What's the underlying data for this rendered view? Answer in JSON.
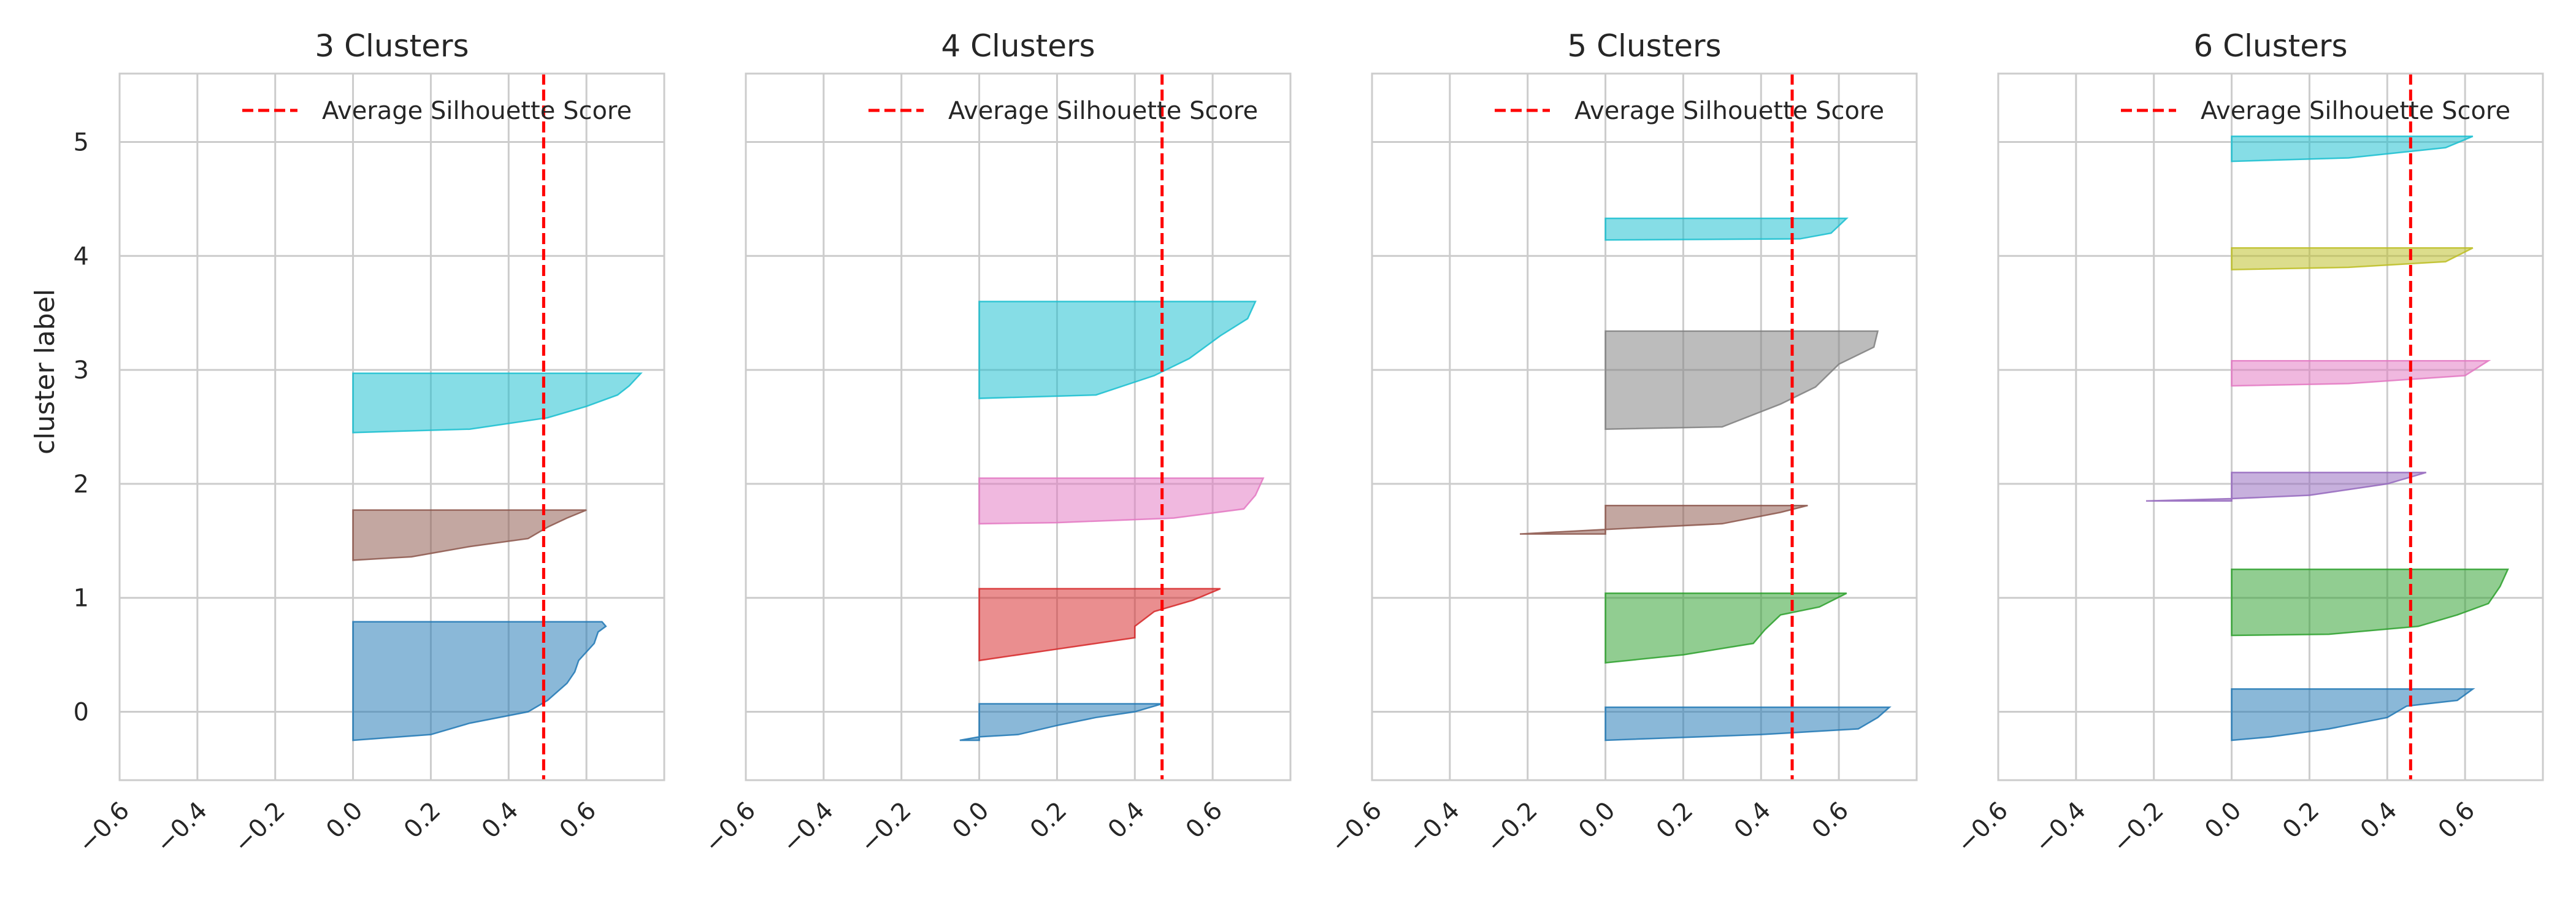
{
  "chart_data": [
    {
      "type": "area",
      "title": "3 Clusters",
      "xlabel": "",
      "ylabel": "cluster label",
      "xlim": [
        -0.6,
        0.8
      ],
      "ylim": [
        -0.6,
        5.6
      ],
      "xticks": [
        "−0.6",
        "−0.4",
        "−0.2",
        "0.0",
        "0.2",
        "0.4",
        "0.6"
      ],
      "yticks": [
        "0",
        "1",
        "2",
        "3",
        "4",
        "5"
      ],
      "grid": true,
      "legend": {
        "label": "Average Silhouette Score",
        "placement": "top-right"
      },
      "average_score": 0.49,
      "clusters": [
        {
          "label": 0,
          "color": "#1f77b4",
          "y_range": [
            -0.25,
            0.79
          ],
          "profile": [
            [
              0.64,
              0.79
            ],
            [
              0.65,
              0.75
            ],
            [
              0.63,
              0.7
            ],
            [
              0.62,
              0.6
            ],
            [
              0.58,
              0.45
            ],
            [
              0.57,
              0.35
            ],
            [
              0.55,
              0.25
            ],
            [
              0.5,
              0.1
            ],
            [
              0.45,
              0.0
            ],
            [
              0.3,
              -0.1
            ],
            [
              0.2,
              -0.2
            ],
            [
              0.0,
              -0.25
            ]
          ]
        },
        {
          "label": 1,
          "color": "#8c564b",
          "y_range": [
            1.33,
            1.77
          ],
          "profile": [
            [
              0.6,
              1.77
            ],
            [
              0.55,
              1.7
            ],
            [
              0.5,
              1.62
            ],
            [
              0.45,
              1.52
            ],
            [
              0.3,
              1.45
            ],
            [
              0.15,
              1.36
            ],
            [
              0.0,
              1.33
            ]
          ]
        },
        {
          "label": 2,
          "color": "#17becf",
          "y_range": [
            2.45,
            2.97
          ],
          "profile": [
            [
              0.74,
              2.97
            ],
            [
              0.71,
              2.86
            ],
            [
              0.68,
              2.78
            ],
            [
              0.6,
              2.68
            ],
            [
              0.5,
              2.58
            ],
            [
              0.3,
              2.48
            ],
            [
              0.0,
              2.45
            ]
          ]
        }
      ]
    },
    {
      "type": "area",
      "title": "4 Clusters",
      "xlabel": "",
      "ylabel": "",
      "xlim": [
        -0.6,
        0.8
      ],
      "ylim": [
        -0.6,
        5.6
      ],
      "xticks": [
        "−0.6",
        "−0.4",
        "−0.2",
        "0.0",
        "0.2",
        "0.4",
        "0.6"
      ],
      "yticks": [
        "0",
        "1",
        "2",
        "3",
        "4",
        "5"
      ],
      "grid": true,
      "legend": {
        "label": "Average Silhouette Score",
        "placement": "top-right"
      },
      "average_score": 0.47,
      "clusters": [
        {
          "label": 0,
          "color": "#1f77b4",
          "y_range": [
            -0.25,
            0.07
          ],
          "profile": [
            [
              0.47,
              0.07
            ],
            [
              0.4,
              0.0
            ],
            [
              0.3,
              -0.05
            ],
            [
              0.2,
              -0.12
            ],
            [
              0.1,
              -0.2
            ],
            [
              0.0,
              -0.22
            ],
            [
              -0.05,
              -0.25
            ]
          ]
        },
        {
          "label": 1,
          "color": "#d62728",
          "y_range": [
            0.45,
            1.08
          ],
          "profile": [
            [
              0.62,
              1.08
            ],
            [
              0.55,
              0.98
            ],
            [
              0.45,
              0.88
            ],
            [
              0.4,
              0.75
            ],
            [
              0.4,
              0.65
            ],
            [
              0.2,
              0.55
            ],
            [
              0.0,
              0.45
            ]
          ]
        },
        {
          "label": 2,
          "color": "#e377c2",
          "y_range": [
            1.65,
            2.05
          ],
          "profile": [
            [
              0.73,
              2.05
            ],
            [
              0.71,
              1.9
            ],
            [
              0.68,
              1.78
            ],
            [
              0.5,
              1.7
            ],
            [
              0.2,
              1.66
            ],
            [
              0.0,
              1.65
            ]
          ]
        },
        {
          "label": 3,
          "color": "#17becf",
          "y_range": [
            2.75,
            3.6
          ],
          "profile": [
            [
              0.71,
              3.6
            ],
            [
              0.69,
              3.45
            ],
            [
              0.62,
              3.3
            ],
            [
              0.54,
              3.1
            ],
            [
              0.45,
              2.95
            ],
            [
              0.3,
              2.78
            ],
            [
              0.0,
              2.75
            ]
          ]
        }
      ]
    },
    {
      "type": "area",
      "title": "5 Clusters",
      "xlabel": "",
      "ylabel": "",
      "xlim": [
        -0.6,
        0.8
      ],
      "ylim": [
        -0.6,
        5.6
      ],
      "xticks": [
        "−0.6",
        "−0.4",
        "−0.2",
        "0.0",
        "0.2",
        "0.4",
        "0.6"
      ],
      "yticks": [
        "0",
        "1",
        "2",
        "3",
        "4",
        "5"
      ],
      "grid": true,
      "legend": {
        "label": "Average Silhouette Score",
        "placement": "top-right"
      },
      "average_score": 0.48,
      "clusters": [
        {
          "label": 0,
          "color": "#1f77b4",
          "y_range": [
            -0.25,
            0.04
          ],
          "profile": [
            [
              0.73,
              0.04
            ],
            [
              0.7,
              -0.05
            ],
            [
              0.65,
              -0.15
            ],
            [
              0.4,
              -0.2
            ],
            [
              0.0,
              -0.25
            ]
          ]
        },
        {
          "label": 1,
          "color": "#2ca02c",
          "y_range": [
            0.43,
            1.04
          ],
          "profile": [
            [
              0.62,
              1.04
            ],
            [
              0.55,
              0.92
            ],
            [
              0.45,
              0.85
            ],
            [
              0.41,
              0.72
            ],
            [
              0.38,
              0.6
            ],
            [
              0.2,
              0.5
            ],
            [
              0.0,
              0.43
            ]
          ]
        },
        {
          "label": 2,
          "color": "#8c564b",
          "y_range": [
            1.56,
            1.81
          ],
          "profile": [
            [
              0.52,
              1.81
            ],
            [
              0.45,
              1.75
            ],
            [
              0.3,
              1.65
            ],
            [
              0.0,
              1.6
            ],
            [
              -0.22,
              1.56
            ]
          ]
        },
        {
          "label": 3,
          "color": "#7f7f7f",
          "y_range": [
            2.48,
            3.34
          ],
          "profile": [
            [
              0.7,
              3.34
            ],
            [
              0.69,
              3.2
            ],
            [
              0.6,
              3.05
            ],
            [
              0.54,
              2.85
            ],
            [
              0.45,
              2.7
            ],
            [
              0.3,
              2.5
            ],
            [
              0.0,
              2.48
            ]
          ]
        },
        {
          "label": 4,
          "color": "#17becf",
          "y_range": [
            4.14,
            4.33
          ],
          "profile": [
            [
              0.62,
              4.33
            ],
            [
              0.58,
              4.2
            ],
            [
              0.5,
              4.15
            ],
            [
              0.0,
              4.14
            ]
          ]
        }
      ]
    },
    {
      "type": "area",
      "title": "6 Clusters",
      "xlabel": "",
      "ylabel": "",
      "xlim": [
        -0.6,
        0.8
      ],
      "ylim": [
        -0.6,
        5.6
      ],
      "xticks": [
        "−0.6",
        "−0.4",
        "−0.2",
        "0.0",
        "0.2",
        "0.4",
        "0.6"
      ],
      "yticks": [
        "0",
        "1",
        "2",
        "3",
        "4",
        "5"
      ],
      "grid": true,
      "legend": {
        "label": "Average Silhouette Score",
        "placement": "top-right"
      },
      "average_score": 0.46,
      "clusters": [
        {
          "label": 0,
          "color": "#1f77b4",
          "y_range": [
            -0.25,
            0.2
          ],
          "profile": [
            [
              0.62,
              0.2
            ],
            [
              0.58,
              0.1
            ],
            [
              0.45,
              0.05
            ],
            [
              0.4,
              -0.05
            ],
            [
              0.25,
              -0.15
            ],
            [
              0.1,
              -0.22
            ],
            [
              0.0,
              -0.25
            ]
          ]
        },
        {
          "label": 1,
          "color": "#2ca02c",
          "y_range": [
            0.67,
            1.25
          ],
          "profile": [
            [
              0.71,
              1.25
            ],
            [
              0.69,
              1.1
            ],
            [
              0.66,
              0.95
            ],
            [
              0.58,
              0.85
            ],
            [
              0.48,
              0.75
            ],
            [
              0.25,
              0.68
            ],
            [
              0.0,
              0.67
            ]
          ]
        },
        {
          "label": 2,
          "color": "#9467bd",
          "y_range": [
            1.85,
            2.1
          ],
          "profile": [
            [
              0.5,
              2.1
            ],
            [
              0.4,
              2.0
            ],
            [
              0.2,
              1.9
            ],
            [
              0.0,
              1.87
            ],
            [
              -0.22,
              1.85
            ]
          ]
        },
        {
          "label": 3,
          "color": "#e377c2",
          "y_range": [
            2.86,
            3.08
          ],
          "profile": [
            [
              0.66,
              3.08
            ],
            [
              0.6,
              2.95
            ],
            [
              0.3,
              2.88
            ],
            [
              0.0,
              2.86
            ]
          ]
        },
        {
          "label": 4,
          "color": "#bcbd22",
          "y_range": [
            3.88,
            4.07
          ],
          "profile": [
            [
              0.62,
              4.07
            ],
            [
              0.55,
              3.95
            ],
            [
              0.3,
              3.9
            ],
            [
              0.0,
              3.88
            ]
          ]
        },
        {
          "label": 5,
          "color": "#17becf",
          "y_range": [
            4.83,
            5.05
          ],
          "profile": [
            [
              0.62,
              5.05
            ],
            [
              0.55,
              4.95
            ],
            [
              0.3,
              4.86
            ],
            [
              0.0,
              4.83
            ]
          ]
        }
      ]
    }
  ]
}
